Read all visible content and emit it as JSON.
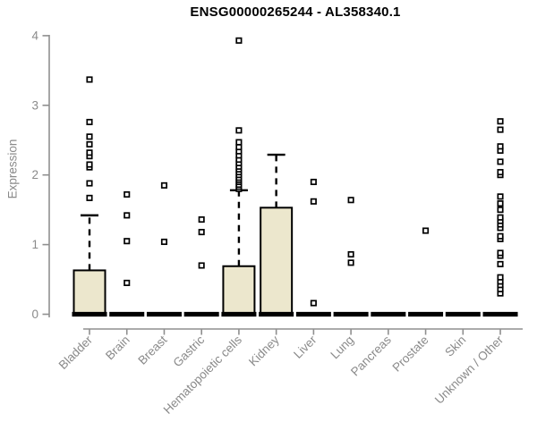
{
  "chart_data": {
    "type": "boxplot",
    "title": "ENSG00000265244 - AL358340.1",
    "ylabel": "Expression",
    "xlabel": "",
    "ylim": [
      0,
      4
    ],
    "yticks": [
      0,
      1,
      2,
      3,
      4
    ],
    "grid": false,
    "legend": "none",
    "categories": [
      "Bladder",
      "Brain",
      "Breast",
      "Gastric",
      "Hematopoietic cells",
      "Kidney",
      "Liver",
      "Lung",
      "Pancreas",
      "Prostate",
      "Skin",
      "Unknown / Other"
    ],
    "boxes": [
      {
        "category": "Bladder",
        "q1": 0,
        "median": 0,
        "q3": 0.63,
        "whisker_low": 0,
        "whisker_high": 1.42,
        "outliers": [
          1.67,
          1.88,
          2.11,
          2.15,
          2.27,
          2.32,
          2.44,
          2.55,
          2.76,
          3.37
        ]
      },
      {
        "category": "Brain",
        "q1": 0,
        "median": 0,
        "q3": 0,
        "whisker_low": 0,
        "whisker_high": 0,
        "outliers": [
          0.45,
          1.05,
          1.42,
          1.72
        ]
      },
      {
        "category": "Breast",
        "q1": 0,
        "median": 0,
        "q3": 0,
        "whisker_low": 0,
        "whisker_high": 0,
        "outliers": [
          1.04,
          1.85
        ]
      },
      {
        "category": "Gastric",
        "q1": 0,
        "median": 0,
        "q3": 0,
        "whisker_low": 0,
        "whisker_high": 0,
        "outliers": [
          0.7,
          1.18,
          1.36
        ]
      },
      {
        "category": "Hematopoietic cells",
        "q1": 0,
        "median": 0,
        "q3": 0.69,
        "whisker_low": 0,
        "whisker_high": 1.78,
        "outliers": [
          1.8,
          1.83,
          1.86,
          1.9,
          1.93,
          1.96,
          2.0,
          2.04,
          2.08,
          2.12,
          2.17,
          2.22,
          2.28,
          2.34,
          2.4,
          2.47,
          2.64,
          3.93
        ]
      },
      {
        "category": "Kidney",
        "q1": 0,
        "median": 0,
        "q3": 1.53,
        "whisker_low": 0,
        "whisker_high": 2.29,
        "outliers": []
      },
      {
        "category": "Liver",
        "q1": 0,
        "median": 0,
        "q3": 0,
        "whisker_low": 0,
        "whisker_high": 0,
        "outliers": [
          0.16,
          1.62,
          1.9
        ]
      },
      {
        "category": "Lung",
        "q1": 0,
        "median": 0,
        "q3": 0,
        "whisker_low": 0,
        "whisker_high": 0,
        "outliers": [
          0.74,
          0.86,
          1.64
        ]
      },
      {
        "category": "Pancreas",
        "q1": 0,
        "median": 0,
        "q3": 0,
        "whisker_low": 0,
        "whisker_high": 0,
        "outliers": []
      },
      {
        "category": "Prostate",
        "q1": 0,
        "median": 0,
        "q3": 0,
        "whisker_low": 0,
        "whisker_high": 0,
        "outliers": [
          1.2
        ]
      },
      {
        "category": "Skin",
        "q1": 0,
        "median": 0,
        "q3": 0,
        "whisker_low": 0,
        "whisker_high": 0,
        "outliers": []
      },
      {
        "category": "Unknown / Other",
        "q1": 0,
        "median": 0,
        "q3": 0,
        "whisker_low": 0,
        "whisker_high": 0,
        "outliers": [
          0.3,
          0.36,
          0.42,
          0.47,
          0.53,
          0.72,
          0.84,
          0.88,
          1.08,
          1.12,
          1.24,
          1.29,
          1.34,
          1.39,
          1.5,
          1.59,
          1.69,
          2.0,
          2.04,
          2.19,
          2.35,
          2.41,
          2.65,
          2.77
        ]
      }
    ],
    "colors": {
      "box_fill": "#ece7cd",
      "box_border": "#000000",
      "median": "#000000",
      "whisker": "#000000",
      "outlier": "#000000",
      "axis_line": "#8f8f8f",
      "tick_label": "#8a8a8a",
      "title": "#000000",
      "background": "#ffffff"
    }
  }
}
